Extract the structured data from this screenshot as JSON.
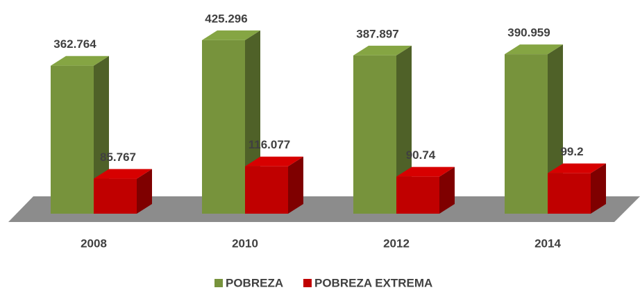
{
  "chart_data": {
    "type": "bar3d",
    "categories": [
      "2008",
      "2010",
      "2012",
      "2014"
    ],
    "series": [
      {
        "name": "POBREZA",
        "color": "#77933c",
        "values": [
          362.764,
          425.296,
          387.897,
          390.959
        ]
      },
      {
        "name": "POBREZA EXTREMA",
        "color": "#c00000",
        "values": [
          85.767,
          116.077,
          90.74,
          99.2
        ]
      }
    ]
  }
}
